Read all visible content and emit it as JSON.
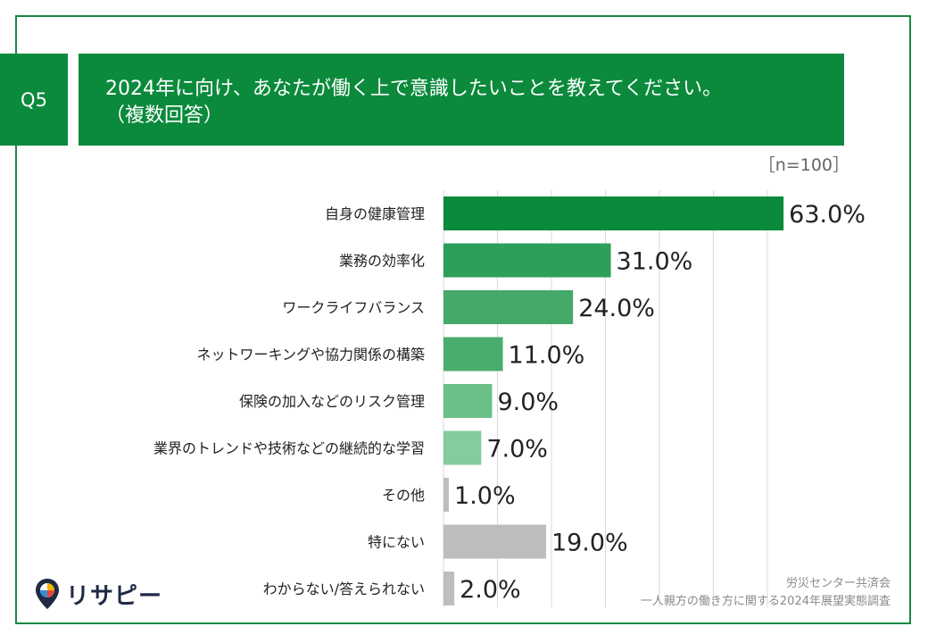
{
  "question": {
    "number": "Q5",
    "title_line1": "2024年に向け、あなたが働く上で意識したいことを教えてください。",
    "title_line2": "（複数回答）"
  },
  "sample_size": "［n=100］",
  "footer": {
    "line1": "労災センター共済会",
    "line2": "一人親方の働き方に関する2024年展望実態調査"
  },
  "logo": {
    "text": "リサピー",
    "icon": "pin-icon"
  },
  "colors": {
    "header": "#0b8a3c",
    "bars": [
      "#0b8a3c",
      "#2e9e5b",
      "#45a96a",
      "#4aad6e",
      "#6bbf88",
      "#85cb9d",
      "#bdbdbd",
      "#bdbdbd",
      "#bdbdbd"
    ]
  },
  "chart_data": {
    "type": "bar",
    "orientation": "horizontal",
    "categories": [
      "自身の健康管理",
      "業務の効率化",
      "ワークライフバランス",
      "ネットワーキングや協力関係の構築",
      "保険の加入などのリスク管理",
      "業界のトレンドや技術などの継続的な学習",
      "その他",
      "特にない",
      "わからない/答えられない"
    ],
    "values": [
      63.0,
      31.0,
      24.0,
      11.0,
      9.0,
      7.0,
      1.0,
      19.0,
      2.0
    ],
    "value_labels": [
      "63.0%",
      "31.0%",
      "24.0%",
      "11.0%",
      "9.0%",
      "7.0%",
      "1.0%",
      "19.0%",
      "2.0%"
    ],
    "xlim": [
      0,
      60
    ],
    "grid": true,
    "legend": "none"
  }
}
